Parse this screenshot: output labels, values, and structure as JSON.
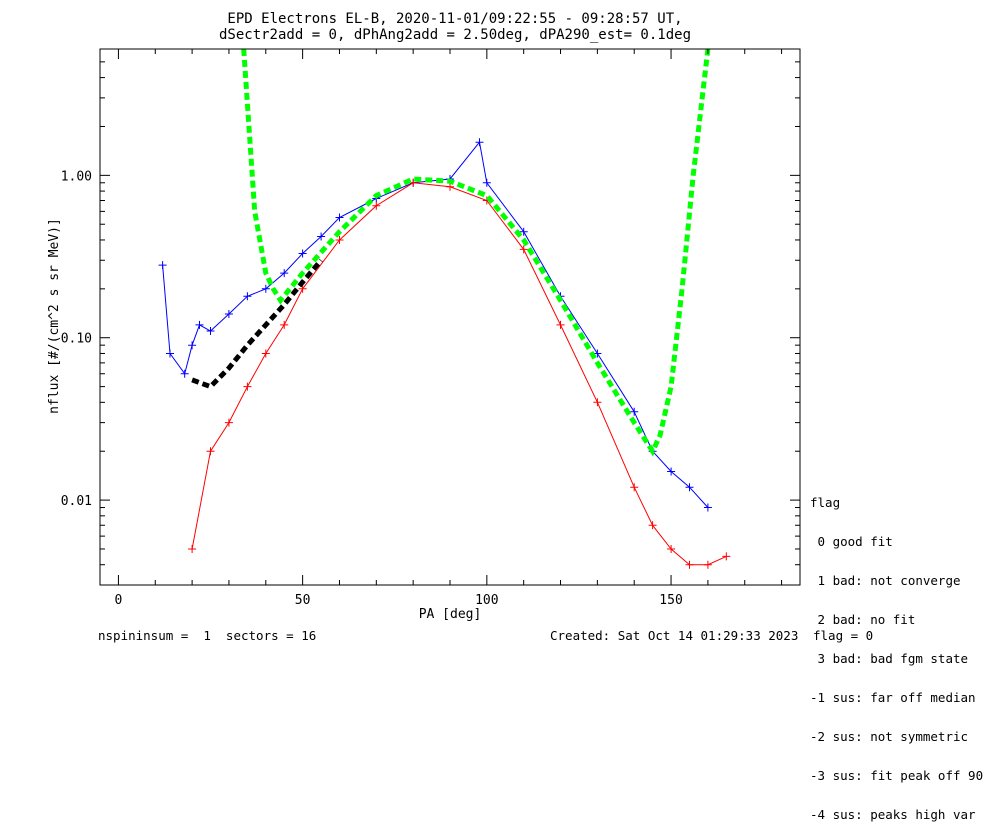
{
  "colors": {
    "background": "#ffffff",
    "axes": "#000000",
    "series_a": "#0000ff",
    "series_b": "#ff0000",
    "fit": "#00ff00",
    "median": "#000000"
  },
  "chart_data": {
    "type": "line",
    "title": "EPD Electrons EL-B, 2020-11-01/09:22:55 - 09:28:57 UT,",
    "subtitle": "dSectr2add = 0, dPhAng2add = 2.50deg, dPA290_est=   0.1deg",
    "xlabel": "PA [deg]",
    "ylabel": "nflux [#/(cm^2 s sr MeV)]",
    "xlim": [
      -5,
      185
    ],
    "ylim": [
      0.003,
      6.0
    ],
    "yscale": "log",
    "x_ticks": [
      0,
      50,
      100,
      150
    ],
    "y_ticks": [
      0.01,
      0.1,
      1.0
    ],
    "y_tick_labels": [
      "0.01",
      "0.10",
      "1.00"
    ],
    "grid": false,
    "series": [
      {
        "color": "blue",
        "marker": "+",
        "x": [
          12,
          14,
          18,
          20,
          22,
          25,
          30,
          35,
          40,
          45,
          50,
          55,
          60,
          70,
          80,
          90,
          98,
          100,
          110,
          120,
          130,
          140,
          145,
          150,
          155,
          160
        ],
        "y": [
          0.28,
          0.08,
          0.06,
          0.09,
          0.12,
          0.11,
          0.14,
          0.18,
          0.2,
          0.25,
          0.33,
          0.42,
          0.55,
          0.72,
          0.9,
          0.95,
          1.6,
          0.9,
          0.45,
          0.18,
          0.08,
          0.035,
          0.02,
          0.015,
          0.012,
          0.009
        ]
      },
      {
        "color": "red",
        "marker": "+",
        "x": [
          20,
          25,
          30,
          35,
          40,
          45,
          50,
          60,
          70,
          80,
          90,
          100,
          110,
          120,
          130,
          140,
          145,
          150,
          155,
          160,
          165
        ],
        "y": [
          0.005,
          0.02,
          0.03,
          0.05,
          0.08,
          0.12,
          0.2,
          0.4,
          0.65,
          0.9,
          0.85,
          0.7,
          0.35,
          0.12,
          0.04,
          0.012,
          0.007,
          0.005,
          0.004,
          0.004,
          0.0045
        ]
      },
      {
        "name": "fit",
        "color": "green",
        "style": "dashed",
        "x": [
          34,
          37,
          40,
          42,
          44,
          50,
          60,
          70,
          80,
          90,
          100,
          110,
          120,
          130,
          140,
          145,
          147,
          150,
          153,
          156,
          160
        ],
        "y": [
          6.0,
          0.6,
          0.25,
          0.2,
          0.17,
          0.25,
          0.45,
          0.75,
          0.95,
          0.92,
          0.75,
          0.4,
          0.17,
          0.07,
          0.03,
          0.02,
          0.025,
          0.05,
          0.2,
          1.0,
          6.0
        ]
      },
      {
        "name": "median",
        "color": "black",
        "style": "dashed",
        "x": [
          20,
          25,
          30,
          35,
          40,
          45,
          50,
          55
        ],
        "y": [
          0.055,
          0.05,
          0.065,
          0.09,
          0.12,
          0.16,
          0.22,
          0.3
        ]
      }
    ]
  },
  "legend": {
    "title": "flag",
    "items": [
      " 0 good fit",
      " 1 bad: not converge",
      " 2 bad: no fit",
      " 3 bad: bad fgm state",
      "-1 sus: far off median",
      "-2 sus: not symmetric",
      "-3 sus: fit peak off 90",
      "-4 sus: peaks high var"
    ]
  },
  "footer": {
    "left": "nspininsum =  1  sectors = 16",
    "created": "Created: Sat Oct 14 01:29:33 2023",
    "flag": "flag = 0"
  }
}
